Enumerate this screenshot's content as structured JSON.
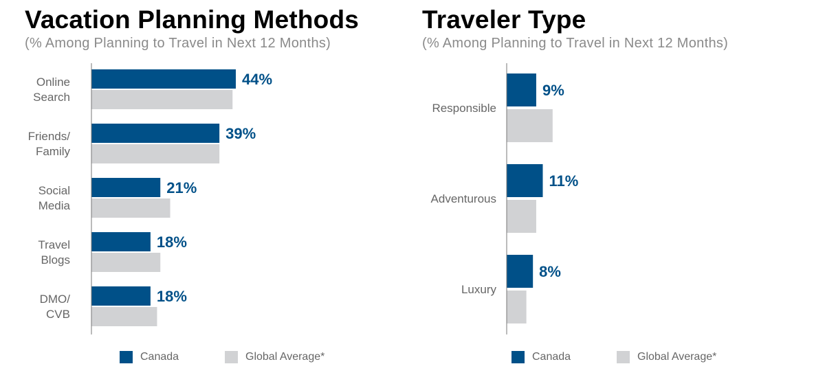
{
  "colors": {
    "canada": "#005088",
    "global": "#d1d2d4",
    "axis": "#777777"
  },
  "chart_data": [
    {
      "type": "bar",
      "orientation": "horizontal",
      "title": "Vacation Planning Methods",
      "subtitle": "(% Among Planning to Travel in Next 12 Months)",
      "categories": [
        [
          "Online",
          "Search"
        ],
        [
          "Friends/",
          "Family"
        ],
        [
          "Social",
          "Media"
        ],
        [
          "Travel",
          "Blogs"
        ],
        [
          "DMO/",
          "CVB"
        ]
      ],
      "series": [
        {
          "name": "Canada",
          "values": [
            44,
            39,
            21,
            18,
            18
          ],
          "labels": [
            "44%",
            "39%",
            "21%",
            "18%",
            "18%"
          ]
        },
        {
          "name": "Global Average*",
          "values": [
            43,
            39,
            24,
            21,
            20
          ]
        }
      ],
      "xlim": [
        0,
        44
      ],
      "grid": false,
      "legend": "bottom"
    },
    {
      "type": "bar",
      "orientation": "horizontal",
      "title": "Traveler Type",
      "subtitle": "(% Among Planning to Travel in Next 12 Months)",
      "categories": [
        [
          "Responsible"
        ],
        [
          "Adventurous"
        ],
        [
          "Luxury"
        ]
      ],
      "series": [
        {
          "name": "Canada",
          "values": [
            9,
            11,
            8
          ],
          "labels": [
            "9%",
            "11%",
            "8%"
          ]
        },
        {
          "name": "Global Average*",
          "values": [
            14,
            9,
            6
          ]
        }
      ],
      "xlim": [
        0,
        44
      ],
      "grid": false,
      "legend": "bottom"
    }
  ]
}
